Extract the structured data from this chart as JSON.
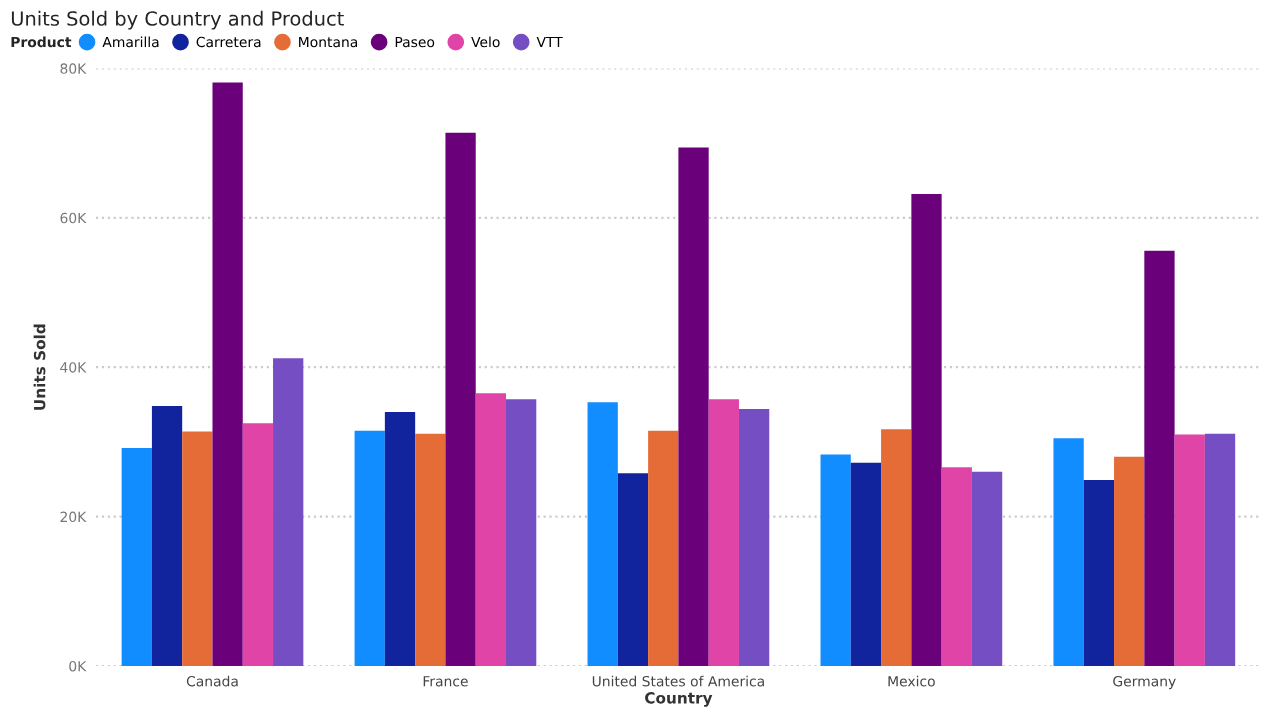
{
  "chart_data": {
    "type": "bar",
    "title": "Units Sold by Country and Product",
    "xlabel": "Country",
    "ylabel": "Units Sold",
    "legend_title": "Product",
    "legend": "top left",
    "grid": "y",
    "categories": [
      "Canada",
      "France",
      "United States of America",
      "Mexico",
      "Germany"
    ],
    "ylim": [
      0,
      80000
    ],
    "yticks": [
      {
        "value": 0,
        "label": "0K"
      },
      {
        "value": 20000,
        "label": "20K"
      },
      {
        "value": 40000,
        "label": "40K"
      },
      {
        "value": 60000,
        "label": "60K"
      },
      {
        "value": 80000,
        "label": "80K"
      }
    ],
    "series": [
      {
        "name": "Amarilla",
        "color": "#118dff",
        "values": [
          29200,
          31500,
          35300,
          28300,
          30500
        ]
      },
      {
        "name": "Carretera",
        "color": "#12239e",
        "values": [
          34800,
          34000,
          25800,
          27200,
          24900
        ]
      },
      {
        "name": "Montana",
        "color": "#e66c37",
        "values": [
          31400,
          31100,
          31500,
          31700,
          28000
        ]
      },
      {
        "name": "Paseo",
        "color": "#6b007b",
        "values": [
          78100,
          71400,
          69400,
          63200,
          55600
        ]
      },
      {
        "name": "Velo",
        "color": "#e044a7",
        "values": [
          32500,
          36500,
          35700,
          26600,
          31000
        ]
      },
      {
        "name": "VTT",
        "color": "#744ec2",
        "values": [
          41200,
          35700,
          34400,
          26000,
          31100
        ]
      }
    ]
  }
}
